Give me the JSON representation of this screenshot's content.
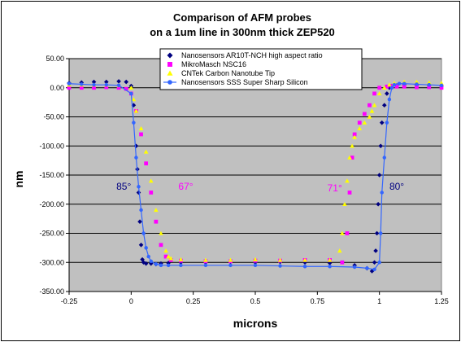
{
  "chart_data": {
    "type": "scatter",
    "title": [
      "Comparison of AFM probes",
      "on a 1um line in 300nm thick ZEP520"
    ],
    "xlabel": "microns",
    "ylabel": "nm",
    "xlim": [
      -0.25,
      1.25
    ],
    "ylim": [
      -350,
      50
    ],
    "xticks": [
      -0.25,
      0,
      0.25,
      0.5,
      0.75,
      1,
      1.25
    ],
    "xtick_labels": [
      "-0.25",
      "0",
      "0.25",
      "0.5",
      "0.75",
      "1",
      "1.25"
    ],
    "yticks": [
      50,
      0,
      -50,
      -100,
      -150,
      -200,
      -250,
      -300,
      -350
    ],
    "ytick_labels": [
      "50.00",
      "0.00",
      "-50.00",
      "-100.00",
      "-150.00",
      "-200.00",
      "-250.00",
      "-300.00",
      "-350.00"
    ],
    "grid": "horizontal",
    "plot_background": "#c0c0c0",
    "legend_position": "top-right",
    "series": [
      {
        "name": "Nanosensors AR10T-NCH high aspect ratio",
        "color": "#000080",
        "marker": "diamond",
        "x": [
          -0.25,
          -0.2,
          -0.15,
          -0.1,
          -0.05,
          -0.02,
          0,
          0.01,
          0.02,
          0.025,
          0.03,
          0.035,
          0.04,
          0.045,
          0.05,
          0.06,
          0.08,
          0.1,
          0.12,
          0.15,
          0.2,
          0.3,
          0.4,
          0.5,
          0.6,
          0.7,
          0.8,
          0.9,
          0.95,
          0.97,
          0.98,
          0.985,
          0.99,
          0.995,
          1.0,
          1.005,
          1.01,
          1.02,
          1.03,
          1.04,
          1.05,
          1.07,
          1.1,
          1.15,
          1.2,
          1.25
        ],
        "y": [
          8,
          9,
          10,
          10,
          11,
          10,
          3,
          -30,
          -100,
          -140,
          -180,
          -230,
          -270,
          -295,
          -300,
          -302,
          -302,
          -303,
          -302,
          -301,
          -300,
          -300,
          -299,
          -300,
          -299,
          -300,
          -301,
          -305,
          -310,
          -315,
          -300,
          -280,
          -250,
          -200,
          -150,
          -100,
          -60,
          -30,
          -10,
          0,
          3,
          4,
          5,
          5,
          4,
          3
        ]
      },
      {
        "name": "MikroMasch NSC16",
        "color": "#ff00ff",
        "marker": "square",
        "x": [
          -0.25,
          -0.2,
          -0.15,
          -0.1,
          -0.05,
          -0.02,
          0,
          0.02,
          0.04,
          0.06,
          0.08,
          0.1,
          0.12,
          0.14,
          0.16,
          0.2,
          0.3,
          0.4,
          0.5,
          0.6,
          0.7,
          0.8,
          0.85,
          0.87,
          0.88,
          0.89,
          0.9,
          0.92,
          0.94,
          0.96,
          0.98,
          1.0,
          1.03,
          1.05,
          1.07,
          1.1,
          1.15,
          1.2,
          1.25
        ],
        "y": [
          0,
          0,
          0,
          1,
          0,
          -2,
          -10,
          -40,
          -80,
          -130,
          -180,
          -230,
          -270,
          -290,
          -296,
          -297,
          -298,
          -298,
          -297,
          -297,
          -296,
          -296,
          -300,
          -250,
          -180,
          -120,
          -80,
          -60,
          -45,
          -30,
          -10,
          0,
          2,
          3,
          2,
          2,
          1,
          1,
          0
        ]
      },
      {
        "name": "CNTek Carbon Nanotube Tip",
        "color": "#ffff00",
        "marker": "triangle",
        "x": [
          -0.25,
          -0.2,
          -0.15,
          -0.1,
          -0.05,
          0,
          0.01,
          0.02,
          0.04,
          0.06,
          0.08,
          0.1,
          0.12,
          0.14,
          0.15,
          0.16,
          0.2,
          0.3,
          0.4,
          0.5,
          0.6,
          0.7,
          0.8,
          0.84,
          0.85,
          0.86,
          0.87,
          0.88,
          0.89,
          0.9,
          0.92,
          0.94,
          0.96,
          0.97,
          0.98,
          1.0,
          1.02,
          1.04,
          1.06,
          1.1,
          1.15,
          1.2,
          1.25
        ],
        "y": [
          5,
          5,
          5,
          5,
          4,
          0,
          -20,
          -40,
          -70,
          -110,
          -160,
          -210,
          -250,
          -280,
          -290,
          -293,
          -295,
          -296,
          -296,
          -295,
          -296,
          -296,
          -296,
          -280,
          -250,
          -200,
          -160,
          -120,
          -100,
          -85,
          -70,
          -60,
          -50,
          -40,
          -30,
          -10,
          0,
          5,
          8,
          10,
          10,
          9,
          8
        ]
      },
      {
        "name": "Nanosensors SSS Super Sharp Silicon",
        "color": "#3366ff",
        "marker": "circle",
        "x": [
          -0.25,
          -0.2,
          -0.15,
          -0.1,
          -0.05,
          0,
          0.01,
          0.02,
          0.03,
          0.04,
          0.05,
          0.06,
          0.07,
          0.08,
          0.1,
          0.12,
          0.15,
          0.2,
          0.3,
          0.4,
          0.5,
          0.6,
          0.7,
          0.8,
          0.9,
          0.95,
          0.98,
          1.0,
          1.005,
          1.01,
          1.02,
          1.03,
          1.04,
          1.05,
          1.06,
          1.08,
          1.1,
          1.15,
          1.2,
          1.25
        ],
        "y": [
          7,
          6,
          5,
          5,
          4,
          -10,
          -60,
          -120,
          -170,
          -210,
          -250,
          -275,
          -290,
          -298,
          -303,
          -305,
          -305,
          -305,
          -305,
          -305,
          -305,
          -306,
          -307,
          -307,
          -308,
          -310,
          -312,
          -300,
          -250,
          -180,
          -120,
          -60,
          -20,
          0,
          5,
          7,
          7,
          6,
          5,
          4
        ]
      }
    ],
    "annotations": [
      {
        "text": "85°",
        "color": "#000080",
        "x": -0.03,
        "y": -175
      },
      {
        "text": "67°",
        "color": "#ff00ff",
        "x": 0.22,
        "y": -175
      },
      {
        "text": "71°",
        "color": "#ff00ff",
        "x": 0.82,
        "y": -178
      },
      {
        "text": "80°",
        "color": "#000080",
        "x": 1.07,
        "y": -175
      }
    ]
  }
}
